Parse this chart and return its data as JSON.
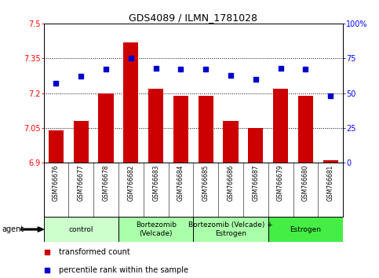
{
  "title": "GDS4089 / ILMN_1781028",
  "samples": [
    "GSM766676",
    "GSM766677",
    "GSM766678",
    "GSM766682",
    "GSM766683",
    "GSM766684",
    "GSM766685",
    "GSM766686",
    "GSM766687",
    "GSM766679",
    "GSM766680",
    "GSM766681"
  ],
  "transformed_counts": [
    7.04,
    7.08,
    7.2,
    7.42,
    7.22,
    7.19,
    7.19,
    7.08,
    7.05,
    7.22,
    7.19,
    6.91
  ],
  "percentile_ranks": [
    57,
    62,
    67,
    75,
    68,
    67,
    67,
    63,
    60,
    68,
    67,
    48
  ],
  "ylim_left": [
    6.9,
    7.5
  ],
  "ylim_right": [
    0,
    100
  ],
  "yticks_left": [
    6.9,
    7.05,
    7.2,
    7.35,
    7.5
  ],
  "yticks_right": [
    0,
    25,
    50,
    75,
    100
  ],
  "ytick_labels_left": [
    "6.9",
    "7.05",
    "7.2",
    "7.35",
    "7.5"
  ],
  "ytick_labels_right": [
    "0",
    "25",
    "50",
    "75",
    "100%"
  ],
  "hlines": [
    7.05,
    7.2,
    7.35
  ],
  "bar_color": "#cc0000",
  "dot_color": "#0000cc",
  "bar_bottom": 6.9,
  "agent_groups": [
    {
      "label": "control",
      "start": 0,
      "end": 3,
      "color": "#ccffcc"
    },
    {
      "label": "Bortezomib\n(Velcade)",
      "start": 3,
      "end": 6,
      "color": "#aaffaa"
    },
    {
      "label": "Bortezomib (Velcade) +\nEstrogen",
      "start": 6,
      "end": 9,
      "color": "#aaffaa"
    },
    {
      "label": "Estrogen",
      "start": 9,
      "end": 12,
      "color": "#44ee44"
    }
  ],
  "legend_items": [
    {
      "color": "#cc0000",
      "label": "transformed count"
    },
    {
      "color": "#0000cc",
      "label": "percentile rank within the sample"
    }
  ],
  "agent_label": "agent",
  "bg_color": "#d8d8d8",
  "plot_bg": "#ffffff",
  "title_fontsize": 9,
  "tick_fontsize": 7,
  "label_fontsize": 7,
  "sample_fontsize": 5.5,
  "agent_fontsize": 6.5,
  "legend_fontsize": 7
}
